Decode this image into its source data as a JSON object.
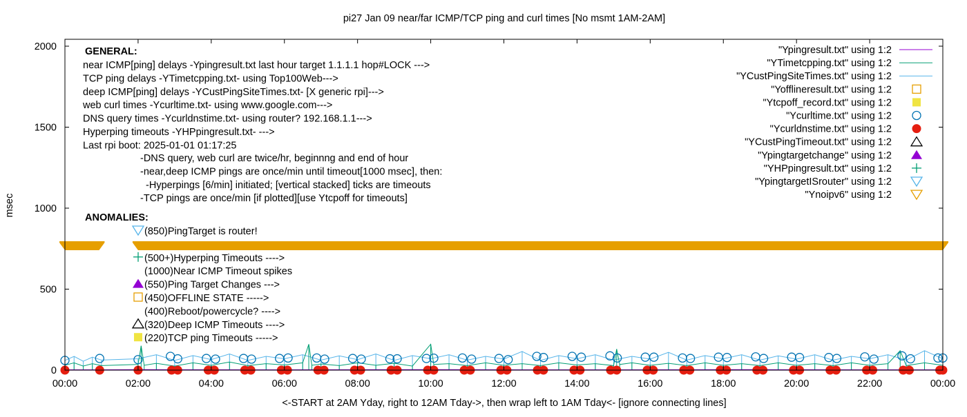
{
  "chart_data": {
    "type": "line",
    "title": "pi27 Jan 09  near/far ICMP/TCP ping and curl times [No msmt 1AM-2AM]",
    "xlabel": "<-START at 2AM Yday, right to 12AM Tday->, then wrap left to 1AM Tday<- [ignore connecting lines]",
    "ylabel": "msec",
    "xlim": [
      "00:00",
      "24:00"
    ],
    "ylim": [
      0,
      2050
    ],
    "x_ticks": [
      "00:00",
      "02:00",
      "04:00",
      "06:00",
      "08:00",
      "10:00",
      "12:00",
      "14:00",
      "16:00",
      "18:00",
      "20:00",
      "22:00",
      "00:00"
    ],
    "y_ticks": [
      0,
      500,
      1000,
      1500,
      2000
    ],
    "grid": false,
    "legend_position": "top-right",
    "colors": {
      "ping": "#9400d3",
      "tcp": "#009e73",
      "deep": "#56b4e9",
      "offline": "#e69f00",
      "tcpoff": "#f0e442",
      "curl": "#0072b2",
      "dns": "#e51e10",
      "custtimeout": "#000000",
      "targetchange": "#9400d3",
      "hp": "#009e73",
      "isrouter": "#56b4e9",
      "noipv6": "#e69f00"
    },
    "series": [
      {
        "name": "\"Ypingresult.txt\" using 1:2",
        "key": "ping",
        "style": "line",
        "points": [
          [
            "00:00",
            2
          ],
          [
            "01:00",
            2
          ],
          [
            "02:00",
            3
          ],
          [
            "06:00",
            2
          ],
          [
            "10:00",
            3
          ],
          [
            "14:00",
            2
          ],
          [
            "18:00",
            3
          ],
          [
            "22:00",
            2
          ],
          [
            "24:00",
            2
          ]
        ]
      },
      {
        "name": "\"YTimetcpping.txt\" using 1:2",
        "key": "tcp",
        "style": "line",
        "points": [
          [
            "00:00",
            30
          ],
          [
            "00:15",
            45
          ],
          [
            "00:30",
            25
          ],
          [
            "00:45",
            40
          ],
          [
            "01:00",
            28
          ],
          [
            "02:00",
            35
          ],
          [
            "02:05",
            150
          ],
          [
            "02:10",
            30
          ],
          [
            "02:30",
            42
          ],
          [
            "03:00",
            25
          ],
          [
            "03:30",
            45
          ],
          [
            "04:00",
            30
          ],
          [
            "04:30",
            50
          ],
          [
            "05:00",
            28
          ],
          [
            "05:30",
            40
          ],
          [
            "06:00",
            32
          ],
          [
            "06:30",
            45
          ],
          [
            "06:40",
            160
          ],
          [
            "06:45",
            30
          ],
          [
            "07:00",
            38
          ],
          [
            "07:30",
            28
          ],
          [
            "08:00",
            45
          ],
          [
            "08:30",
            30
          ],
          [
            "09:00",
            42
          ],
          [
            "09:30",
            25
          ],
          [
            "10:00",
            160
          ],
          [
            "10:05",
            35
          ],
          [
            "10:30",
            40
          ],
          [
            "11:00",
            28
          ],
          [
            "11:30",
            45
          ],
          [
            "12:00",
            30
          ],
          [
            "12:30",
            40
          ],
          [
            "13:00",
            28
          ],
          [
            "13:30",
            45
          ],
          [
            "14:00",
            32
          ],
          [
            "14:30",
            40
          ],
          [
            "15:00",
            28
          ],
          [
            "15:05",
            130
          ],
          [
            "15:10",
            35
          ],
          [
            "15:30",
            45
          ],
          [
            "16:00",
            30
          ],
          [
            "16:30",
            42
          ],
          [
            "17:00",
            28
          ],
          [
            "17:30",
            45
          ],
          [
            "18:00",
            30
          ],
          [
            "18:30",
            40
          ],
          [
            "19:00",
            28
          ],
          [
            "19:30",
            45
          ],
          [
            "20:00",
            30
          ],
          [
            "20:30",
            40
          ],
          [
            "21:00",
            28
          ],
          [
            "21:30",
            45
          ],
          [
            "22:00",
            30
          ],
          [
            "22:30",
            40
          ],
          [
            "22:50",
            120
          ],
          [
            "23:00",
            28
          ],
          [
            "23:30",
            45
          ],
          [
            "24:00",
            30
          ]
        ]
      },
      {
        "name": "\"YCustPingSiteTimes.txt\" using 1:2",
        "key": "deep",
        "style": "line",
        "points": [
          [
            "00:00",
            60
          ],
          [
            "00:15",
            85
          ],
          [
            "00:30",
            55
          ],
          [
            "00:45",
            80
          ],
          [
            "01:00",
            62
          ],
          [
            "02:00",
            70
          ],
          [
            "02:30",
            95
          ],
          [
            "03:00",
            60
          ],
          [
            "03:30",
            90
          ],
          [
            "04:00",
            65
          ],
          [
            "04:30",
            100
          ],
          [
            "05:00",
            60
          ],
          [
            "05:30",
            85
          ],
          [
            "06:00",
            70
          ],
          [
            "06:30",
            95
          ],
          [
            "07:00",
            62
          ],
          [
            "07:30",
            88
          ],
          [
            "08:00",
            65
          ],
          [
            "08:30",
            100
          ],
          [
            "09:00",
            60
          ],
          [
            "09:30",
            90
          ],
          [
            "10:00",
            70
          ],
          [
            "10:30",
            95
          ],
          [
            "11:00",
            62
          ],
          [
            "11:30",
            85
          ],
          [
            "12:00",
            68
          ],
          [
            "12:30",
            115
          ],
          [
            "13:00",
            60
          ],
          [
            "13:30",
            90
          ],
          [
            "14:00",
            70
          ],
          [
            "14:30",
            95
          ],
          [
            "15:00",
            62
          ],
          [
            "15:30",
            85
          ],
          [
            "16:00",
            68
          ],
          [
            "16:30",
            110
          ],
          [
            "17:00",
            62
          ],
          [
            "17:30",
            90
          ],
          [
            "18:00",
            70
          ],
          [
            "18:30",
            95
          ],
          [
            "19:00",
            62
          ],
          [
            "19:30",
            88
          ],
          [
            "20:00",
            68
          ],
          [
            "20:30",
            95
          ],
          [
            "21:00",
            62
          ],
          [
            "21:30",
            85
          ],
          [
            "22:00",
            70
          ],
          [
            "22:30",
            95
          ],
          [
            "23:00",
            62
          ],
          [
            "23:30",
            120
          ],
          [
            "24:00",
            70
          ]
        ]
      },
      {
        "name": "\"Yofflineresult.txt\" using 1:2",
        "key": "offline",
        "style": "open-square",
        "points": []
      },
      {
        "name": "\"Ytcpoff_record.txt\" using 1:2",
        "key": "tcpoff",
        "style": "filled-square",
        "points": []
      },
      {
        "name": "\"Ycurltime.txt\" using 1:2",
        "key": "curl",
        "style": "open-circle",
        "points": [
          [
            "00:00",
            60
          ],
          [
            "00:57",
            72
          ],
          [
            "02:00",
            65
          ],
          [
            "02:53",
            85
          ],
          [
            "03:05",
            70
          ],
          [
            "03:52",
            72
          ],
          [
            "04:07",
            68
          ],
          [
            "04:53",
            72
          ],
          [
            "05:06",
            68
          ],
          [
            "05:52",
            72
          ],
          [
            "06:06",
            75
          ],
          [
            "06:53",
            75
          ],
          [
            "07:06",
            68
          ],
          [
            "07:52",
            72
          ],
          [
            "08:06",
            68
          ],
          [
            "08:53",
            70
          ],
          [
            "09:05",
            70
          ],
          [
            "09:53",
            72
          ],
          [
            "10:05",
            74
          ],
          [
            "10:52",
            75
          ],
          [
            "11:07",
            68
          ],
          [
            "11:52",
            72
          ],
          [
            "12:07",
            65
          ],
          [
            "12:54",
            85
          ],
          [
            "13:05",
            78
          ],
          [
            "13:52",
            85
          ],
          [
            "14:07",
            80
          ],
          [
            "14:54",
            88
          ],
          [
            "15:06",
            75
          ],
          [
            "15:52",
            80
          ],
          [
            "16:06",
            80
          ],
          [
            "16:53",
            75
          ],
          [
            "17:06",
            72
          ],
          [
            "17:52",
            80
          ],
          [
            "18:06",
            78
          ],
          [
            "18:53",
            82
          ],
          [
            "19:06",
            72
          ],
          [
            "19:52",
            80
          ],
          [
            "20:05",
            78
          ],
          [
            "20:53",
            78
          ],
          [
            "21:06",
            72
          ],
          [
            "21:52",
            82
          ],
          [
            "22:07",
            68
          ],
          [
            "22:53",
            88
          ],
          [
            "23:07",
            70
          ],
          [
            "23:52",
            75
          ],
          [
            "24:00",
            75
          ]
        ]
      },
      {
        "name": "\"Ycurldnstime.txt\" using 1:2",
        "key": "dns",
        "style": "filled-circle",
        "points": [
          [
            "00:00",
            0
          ],
          [
            "00:57",
            0
          ],
          [
            "02:00",
            0
          ],
          [
            "02:55",
            0
          ],
          [
            "03:05",
            0
          ],
          [
            "03:55",
            0
          ],
          [
            "04:05",
            0
          ],
          [
            "04:55",
            0
          ],
          [
            "05:05",
            0
          ],
          [
            "05:55",
            0
          ],
          [
            "06:05",
            0
          ],
          [
            "06:55",
            0
          ],
          [
            "07:05",
            0
          ],
          [
            "07:55",
            0
          ],
          [
            "08:05",
            0
          ],
          [
            "08:55",
            0
          ],
          [
            "09:05",
            0
          ],
          [
            "09:55",
            0
          ],
          [
            "10:05",
            0
          ],
          [
            "10:55",
            0
          ],
          [
            "11:05",
            0
          ],
          [
            "11:55",
            0
          ],
          [
            "12:05",
            0
          ],
          [
            "12:55",
            0
          ],
          [
            "13:05",
            0
          ],
          [
            "13:55",
            0
          ],
          [
            "14:05",
            0
          ],
          [
            "14:55",
            0
          ],
          [
            "15:05",
            0
          ],
          [
            "15:55",
            0
          ],
          [
            "16:05",
            0
          ],
          [
            "16:55",
            0
          ],
          [
            "17:05",
            0
          ],
          [
            "17:55",
            0
          ],
          [
            "18:05",
            0
          ],
          [
            "18:55",
            0
          ],
          [
            "19:05",
            0
          ],
          [
            "19:55",
            0
          ],
          [
            "20:05",
            0
          ],
          [
            "20:55",
            0
          ],
          [
            "21:05",
            0
          ],
          [
            "21:55",
            0
          ],
          [
            "22:05",
            0
          ],
          [
            "22:55",
            0
          ],
          [
            "23:05",
            0
          ],
          [
            "23:55",
            0
          ],
          [
            "24:00",
            0
          ]
        ]
      },
      {
        "name": "\"YCustPingTimeout.txt\" using 1:2",
        "key": "custtimeout",
        "style": "open-triangle",
        "points": []
      },
      {
        "name": "\"Ypingtargetchange\" using 1:2",
        "key": "targetchange",
        "style": "filled-triangle",
        "points": []
      },
      {
        "name": "\"YHPpingresult.txt\" using 1:2",
        "key": "hp",
        "style": "plus",
        "points": []
      },
      {
        "name": "\"YpingtargetISrouter\" using 1:2",
        "key": "isrouter",
        "style": "open-down-triangle",
        "points": []
      },
      {
        "name": "\"Ynoipv6\" using 1:2",
        "key": "noipv6",
        "style": "filled-down-triangle-band",
        "ranges": [
          {
            "from": "00:00",
            "to": "00:56",
            "y": 770
          },
          {
            "from": "02:00",
            "to": "24:00",
            "y": 770
          }
        ]
      }
    ],
    "annotations": {
      "general_heading": "GENERAL:",
      "general_lines": [
        "near ICMP[ping] delays -Ypingresult.txt last hour target 1.1.1.1 hop#LOCK --->",
        "TCP ping delays -YTimetcpping.txt- using Top100Web--->",
        "deep ICMP[ping] delays -YCustPingSiteTimes.txt- [X generic rpi]--->",
        "web curl times -Ycurltime.txt- using www.google.com--->",
        "DNS query times -Ycurldnstime.txt- using router? 192.168.1.1--->",
        "Hyperping timeouts -YHPpingresult.txt- --->",
        "Last rpi boot: 2025-01-01 01:17:25"
      ],
      "notes": [
        "-DNS query, web curl are twice/hr, beginnng and end of hour",
        "-near,deep ICMP pings are once/min until timeout[1000 msec], then:",
        "  -Hyperpings [6/min] initiated; [vertical stacked] ticks are timeouts",
        "-TCP pings are once/min [if plotted][use Ytcpoff for timeouts]"
      ],
      "anomalies_heading": "ANOMALIES:",
      "anomalies": [
        {
          "marker": "isrouter",
          "text": "(850)PingTarget is router!"
        },
        {
          "marker": "noipv6",
          "text": ""
        },
        {
          "marker": "hp",
          "text": "(500+)Hyperping Timeouts ---->"
        },
        {
          "marker": "",
          "text": "(1000)Near ICMP Timeout spikes"
        },
        {
          "marker": "targetchange",
          "text": "(550)Ping Target Changes --->"
        },
        {
          "marker": "offline",
          "text": "(450)OFFLINE STATE ----->"
        },
        {
          "marker": "",
          "text": "(400)Reboot/powercycle? ---->"
        },
        {
          "marker": "custtimeout",
          "text": "(320)Deep ICMP Timeouts ---->"
        },
        {
          "marker": "tcpoff",
          "text": "(220)TCP ping Timeouts ----->"
        }
      ]
    }
  }
}
